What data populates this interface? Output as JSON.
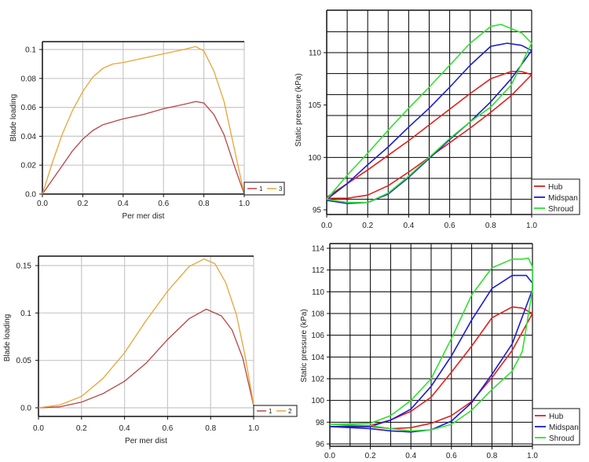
{
  "chart_data": [
    {
      "type": "line",
      "xlabel": "Per mer dist",
      "ylabel": "Blade loading",
      "xlim": [
        0,
        1
      ],
      "ylim": [
        0,
        0.1
      ],
      "xtick_labels": [
        "0.0",
        "0.2",
        "0.4",
        "0.6",
        "0.8",
        "1.0"
      ],
      "ytick_labels": [
        "0.0",
        "0.02",
        "0.04",
        "0.06",
        "0.08",
        "0.1"
      ],
      "grid": true,
      "grid_color": "#c8c8c8",
      "legend": "bottom-right",
      "series": [
        {
          "name": "1",
          "color": "#b84545",
          "x": [
            0,
            0.05,
            0.1,
            0.15,
            0.2,
            0.25,
            0.3,
            0.35,
            0.4,
            0.5,
            0.6,
            0.7,
            0.76,
            0.8,
            0.85,
            0.9,
            0.95,
            1.0
          ],
          "y": [
            0,
            0.01,
            0.02,
            0.03,
            0.038,
            0.044,
            0.048,
            0.05,
            0.052,
            0.055,
            0.059,
            0.062,
            0.064,
            0.063,
            0.055,
            0.041,
            0.02,
            0
          ]
        },
        {
          "name": "3",
          "color": "#e8a535",
          "x": [
            0,
            0.05,
            0.1,
            0.15,
            0.2,
            0.25,
            0.3,
            0.35,
            0.4,
            0.5,
            0.6,
            0.7,
            0.76,
            0.8,
            0.85,
            0.9,
            0.95,
            1.0
          ],
          "y": [
            0,
            0.022,
            0.042,
            0.058,
            0.071,
            0.081,
            0.087,
            0.09,
            0.091,
            0.094,
            0.097,
            0.1,
            0.102,
            0.099,
            0.085,
            0.064,
            0.032,
            0
          ]
        }
      ]
    },
    {
      "type": "line",
      "xlabel": "",
      "ylabel": "Static pressure (kPa)",
      "xlim": [
        0,
        1
      ],
      "ylim": [
        95,
        110
      ],
      "xtick_labels": [
        "0.0",
        "0.2",
        "0.4",
        "0.6",
        "0.8",
        "1.0"
      ],
      "ytick_labels": [
        "95",
        "100",
        "105",
        "110"
      ],
      "grid": true,
      "grid_color": "#000000",
      "legend": "bottom-right",
      "series": [
        {
          "name": "Hub",
          "color": "#e02020",
          "x": [
            0,
            0.1,
            0.2,
            0.3,
            0.4,
            0.5,
            0.6,
            0.7,
            0.8,
            0.9,
            0.95,
            1.0,
            0.9,
            0.8,
            0.7,
            0.6,
            0.5,
            0.4,
            0.3,
            0.2,
            0.1,
            0
          ],
          "y": [
            96.2,
            97.5,
            98.8,
            100.2,
            101.6,
            103.1,
            104.6,
            106.1,
            107.5,
            108.2,
            108.2,
            107.9,
            105.9,
            104.3,
            102.8,
            101.4,
            100.0,
            98.6,
            97.3,
            96.4,
            96.1,
            96.1
          ]
        },
        {
          "name": "Midspan",
          "color": "#1c1cd0",
          "x": [
            0,
            0.1,
            0.2,
            0.3,
            0.4,
            0.5,
            0.6,
            0.7,
            0.8,
            0.88,
            0.95,
            1.0,
            0.9,
            0.8,
            0.7,
            0.6,
            0.5,
            0.4,
            0.3,
            0.2,
            0.1,
            0
          ],
          "y": [
            96.0,
            97.5,
            99.3,
            101.0,
            102.9,
            104.7,
            106.7,
            108.8,
            110.6,
            110.9,
            110.7,
            110.2,
            107.5,
            105.3,
            103.4,
            101.7,
            99.9,
            98.1,
            96.5,
            95.7,
            95.6,
            95.9
          ]
        },
        {
          "name": "Shroud",
          "color": "#30e030",
          "x": [
            0,
            0.1,
            0.2,
            0.3,
            0.4,
            0.5,
            0.6,
            0.7,
            0.8,
            0.85,
            0.95,
            1.0,
            0.9,
            0.8,
            0.7,
            0.6,
            0.5,
            0.4,
            0.3,
            0.2,
            0.1,
            0
          ],
          "y": [
            96.0,
            98.3,
            100.4,
            102.6,
            104.7,
            106.7,
            108.8,
            110.9,
            112.5,
            112.7,
            111.9,
            110.9,
            106.9,
            104.8,
            103.4,
            101.8,
            100.0,
            98.2,
            96.6,
            95.7,
            95.7,
            96.0
          ]
        }
      ]
    },
    {
      "type": "line",
      "xlabel": "Per mer dist",
      "ylabel": "Blade loading",
      "xlim": [
        0,
        1
      ],
      "ylim": [
        0,
        0.15
      ],
      "xtick_labels": [
        "0.0",
        "0.2",
        "0.4",
        "0.6",
        "0.8",
        "1.0"
      ],
      "ytick_labels": [
        "0.0",
        "0.05",
        "0.1",
        "0.15"
      ],
      "grid": true,
      "grid_color": "#c8c8c8",
      "legend": "bottom-right",
      "series": [
        {
          "name": "1",
          "color": "#b84545",
          "x": [
            0,
            0.1,
            0.2,
            0.3,
            0.4,
            0.5,
            0.6,
            0.7,
            0.78,
            0.85,
            0.9,
            0.95,
            1.0
          ],
          "y": [
            0,
            0.001,
            0.006,
            0.015,
            0.028,
            0.047,
            0.072,
            0.094,
            0.104,
            0.097,
            0.082,
            0.052,
            0.002
          ]
        },
        {
          "name": "2",
          "color": "#e8a535",
          "x": [
            0,
            0.1,
            0.2,
            0.3,
            0.4,
            0.5,
            0.6,
            0.7,
            0.77,
            0.82,
            0.87,
            0.92,
            0.96,
            1.0
          ],
          "y": [
            0,
            0.003,
            0.012,
            0.031,
            0.058,
            0.092,
            0.123,
            0.149,
            0.157,
            0.152,
            0.132,
            0.098,
            0.055,
            0.003
          ]
        }
      ]
    },
    {
      "type": "line",
      "xlabel": "",
      "ylabel": "Static pressure (kPa)",
      "xlim": [
        0,
        1
      ],
      "ylim": [
        96,
        114
      ],
      "xtick_labels": [
        "0.0",
        "0.2",
        "0.4",
        "0.6",
        "0.8",
        "1.0"
      ],
      "ytick_labels": [
        "96",
        "98",
        "100",
        "102",
        "104",
        "106",
        "108",
        "110",
        "112",
        "114"
      ],
      "grid": true,
      "grid_color": "#000000",
      "legend": "bottom-right",
      "series": [
        {
          "name": "Hub",
          "color": "#e02020",
          "x": [
            0,
            0.2,
            0.3,
            0.4,
            0.5,
            0.6,
            0.7,
            0.8,
            0.9,
            0.95,
            1.0,
            0.9,
            0.8,
            0.7,
            0.6,
            0.5,
            0.4,
            0.3,
            0.2,
            0
          ],
          "y": [
            97.6,
            97.7,
            98.2,
            99.0,
            100.3,
            102.6,
            105.0,
            107.6,
            108.6,
            108.5,
            108.0,
            104.6,
            102.1,
            99.9,
            98.6,
            97.9,
            97.5,
            97.4,
            97.6,
            97.6
          ]
        },
        {
          "name": "Midspan",
          "color": "#1c1cd0",
          "x": [
            0,
            0.2,
            0.3,
            0.4,
            0.5,
            0.6,
            0.7,
            0.8,
            0.9,
            0.97,
            1.0,
            1.0,
            0.9,
            0.8,
            0.7,
            0.6,
            0.5,
            0.4,
            0.3,
            0.2,
            0
          ],
          "y": [
            97.6,
            97.6,
            98.2,
            99.2,
            101.3,
            104.1,
            107.4,
            110.3,
            111.5,
            111.5,
            110.8,
            110.2,
            105.2,
            102.4,
            99.8,
            98.1,
            97.3,
            97.1,
            97.2,
            97.4,
            97.6
          ]
        },
        {
          "name": "Shroud",
          "color": "#30e030",
          "x": [
            0,
            0.2,
            0.3,
            0.4,
            0.5,
            0.6,
            0.7,
            0.8,
            0.9,
            0.95,
            0.98,
            1.0,
            1.0,
            0.95,
            0.9,
            0.8,
            0.7,
            0.6,
            0.5,
            0.4,
            0.3,
            0.2,
            0
          ],
          "y": [
            97.8,
            97.9,
            98.6,
            100.0,
            102.0,
            105.7,
            109.7,
            112.2,
            113.0,
            113.0,
            113.1,
            112.3,
            110.2,
            104.5,
            102.7,
            101.0,
            99.1,
            97.8,
            97.3,
            97.2,
            97.4,
            97.7,
            97.8
          ]
        }
      ]
    }
  ]
}
